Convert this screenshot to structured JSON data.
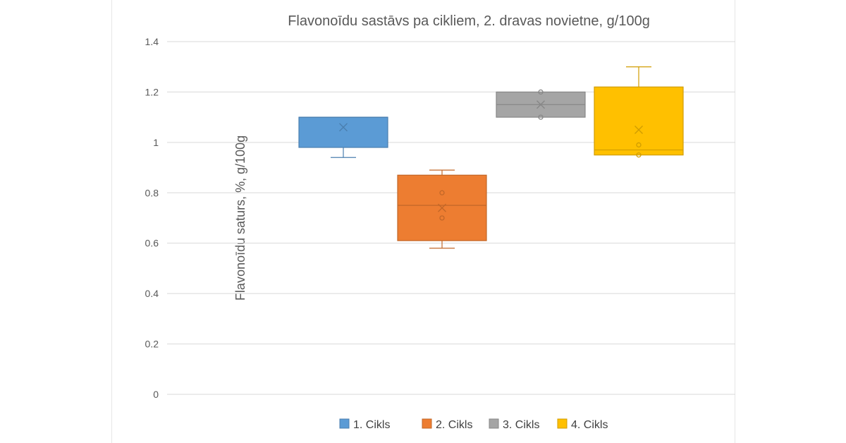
{
  "chart_data": {
    "type": "box",
    "title": "Flavonoīdu sastāvs pa cikliem, 2. dravas novietne, g/100g",
    "xlabel": "",
    "ylabel": "Flavonoīdu saturs, %, g/100g",
    "ylim": [
      0,
      1.4
    ],
    "yticks": [
      "0",
      "0.2",
      "0.4",
      "0.6",
      "0.8",
      "1",
      "1.2",
      "1.4"
    ],
    "grid": true,
    "legend_position": "bottom",
    "series": [
      {
        "name": "1. Cikls",
        "color": "#5B9BD5",
        "whisker_low": 0.94,
        "q1": 0.98,
        "median": 1.1,
        "q3": 1.1,
        "whisker_high": 1.1,
        "mean": 1.06,
        "points": []
      },
      {
        "name": "2. Cikls",
        "color": "#ED7D31",
        "whisker_low": 0.58,
        "q1": 0.61,
        "median": 0.75,
        "q3": 0.87,
        "whisker_high": 0.89,
        "mean": 0.74,
        "points": [
          0.8,
          0.7
        ]
      },
      {
        "name": "3. Cikls",
        "color": "#A5A5A5",
        "whisker_low": 1.1,
        "q1": 1.1,
        "median": 1.15,
        "q3": 1.2,
        "whisker_high": 1.2,
        "mean": 1.15,
        "points": [
          1.2,
          1.1
        ]
      },
      {
        "name": "4. Cikls",
        "color": "#FFC000",
        "whisker_low": 0.95,
        "q1": 0.95,
        "median": 0.97,
        "q3": 1.22,
        "whisker_high": 1.3,
        "mean": 1.05,
        "points": [
          0.99,
          0.95
        ]
      }
    ]
  }
}
